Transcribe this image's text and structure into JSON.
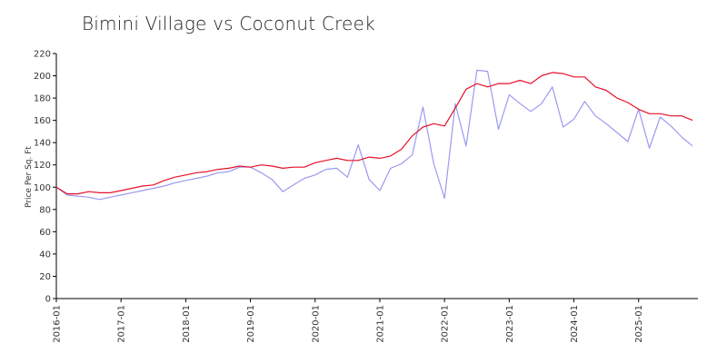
{
  "chart_data": {
    "type": "line",
    "title": "Bimini Village vs Coconut Creek",
    "xlabel": "",
    "ylabel": "Price Per Sq. Ft",
    "ylim": [
      0,
      220
    ],
    "yticks": [
      0,
      20,
      40,
      60,
      80,
      100,
      120,
      140,
      160,
      180,
      200,
      220
    ],
    "xlim": [
      "2016-01",
      "2025-12"
    ],
    "xticks": [
      "2016-01",
      "2017-01",
      "2018-01",
      "2019-01",
      "2020-01",
      "2021-01",
      "2022-01",
      "2023-01",
      "2024-01",
      "2025-01"
    ],
    "grid": false,
    "series": [
      {
        "color": "#e8102a",
        "points": [
          [
            "2016-01",
            100
          ],
          [
            "2016-03",
            94
          ],
          [
            "2016-05",
            94
          ],
          [
            "2016-07",
            96
          ],
          [
            "2016-09",
            95
          ],
          [
            "2016-11",
            95
          ],
          [
            "2017-01",
            97
          ],
          [
            "2017-03",
            99
          ],
          [
            "2017-05",
            101
          ],
          [
            "2017-07",
            102
          ],
          [
            "2017-09",
            106
          ],
          [
            "2017-11",
            109
          ],
          [
            "2018-01",
            111
          ],
          [
            "2018-03",
            113
          ],
          [
            "2018-05",
            114
          ],
          [
            "2018-07",
            116
          ],
          [
            "2018-09",
            117
          ],
          [
            "2018-11",
            119
          ],
          [
            "2019-01",
            118
          ],
          [
            "2019-03",
            120
          ],
          [
            "2019-05",
            119
          ],
          [
            "2019-07",
            117
          ],
          [
            "2019-09",
            118
          ],
          [
            "2019-11",
            118
          ],
          [
            "2020-01",
            122
          ],
          [
            "2020-03",
            124
          ],
          [
            "2020-05",
            126
          ],
          [
            "2020-07",
            124
          ],
          [
            "2020-09",
            124
          ],
          [
            "2020-11",
            127
          ],
          [
            "2021-01",
            126
          ],
          [
            "2021-03",
            128
          ],
          [
            "2021-05",
            134
          ],
          [
            "2021-07",
            146
          ],
          [
            "2021-09",
            154
          ],
          [
            "2021-11",
            157
          ],
          [
            "2022-01",
            155
          ],
          [
            "2022-03",
            171
          ],
          [
            "2022-05",
            188
          ],
          [
            "2022-07",
            193
          ],
          [
            "2022-09",
            190
          ],
          [
            "2022-11",
            193
          ],
          [
            "2023-01",
            193
          ],
          [
            "2023-03",
            196
          ],
          [
            "2023-05",
            193
          ],
          [
            "2023-07",
            200
          ],
          [
            "2023-09",
            203
          ],
          [
            "2023-11",
            202
          ],
          [
            "2024-01",
            199
          ],
          [
            "2024-03",
            199
          ],
          [
            "2024-05",
            190
          ],
          [
            "2024-07",
            187
          ],
          [
            "2024-09",
            180
          ],
          [
            "2024-11",
            176
          ],
          [
            "2025-01",
            170
          ],
          [
            "2025-03",
            166
          ],
          [
            "2025-05",
            166
          ],
          [
            "2025-07",
            164
          ],
          [
            "2025-09",
            164
          ],
          [
            "2025-11",
            160
          ]
        ]
      },
      {
        "color": "#9a9af0",
        "points": [
          [
            "2016-01",
            100
          ],
          [
            "2016-03",
            93
          ],
          [
            "2016-05",
            92
          ],
          [
            "2016-07",
            91
          ],
          [
            "2016-09",
            89
          ],
          [
            "2016-11",
            91
          ],
          [
            "2017-01",
            93
          ],
          [
            "2017-03",
            95
          ],
          [
            "2017-05",
            97
          ],
          [
            "2017-07",
            99
          ],
          [
            "2017-09",
            101
          ],
          [
            "2017-11",
            104
          ],
          [
            "2018-01",
            106
          ],
          [
            "2018-03",
            108
          ],
          [
            "2018-05",
            110
          ],
          [
            "2018-07",
            113
          ],
          [
            "2018-09",
            114
          ],
          [
            "2018-11",
            118
          ],
          [
            "2019-01",
            118
          ],
          [
            "2019-03",
            113
          ],
          [
            "2019-05",
            107
          ],
          [
            "2019-07",
            96
          ],
          [
            "2019-09",
            102
          ],
          [
            "2019-11",
            108
          ],
          [
            "2020-01",
            111
          ],
          [
            "2020-03",
            116
          ],
          [
            "2020-05",
            117
          ],
          [
            "2020-07",
            109
          ],
          [
            "2020-09",
            138
          ],
          [
            "2020-11",
            107
          ],
          [
            "2021-01",
            97
          ],
          [
            "2021-03",
            117
          ],
          [
            "2021-05",
            121
          ],
          [
            "2021-07",
            129
          ],
          [
            "2021-09",
            172
          ],
          [
            "2021-11",
            121
          ],
          [
            "2022-01",
            90
          ],
          [
            "2022-03",
            175
          ],
          [
            "2022-05",
            137
          ],
          [
            "2022-07",
            205
          ],
          [
            "2022-09",
            204
          ],
          [
            "2022-11",
            152
          ],
          [
            "2023-01",
            183
          ],
          [
            "2023-03",
            175
          ],
          [
            "2023-05",
            168
          ],
          [
            "2023-07",
            175
          ],
          [
            "2023-09",
            190
          ],
          [
            "2023-11",
            154
          ],
          [
            "2024-01",
            161
          ],
          [
            "2024-03",
            177
          ],
          [
            "2024-05",
            164
          ],
          [
            "2024-07",
            157
          ],
          [
            "2024-09",
            149
          ],
          [
            "2024-11",
            141
          ],
          [
            "2025-01",
            170
          ],
          [
            "2025-03",
            135
          ],
          [
            "2025-05",
            163
          ],
          [
            "2025-07",
            155
          ],
          [
            "2025-09",
            145
          ],
          [
            "2025-11",
            137
          ]
        ]
      }
    ]
  }
}
